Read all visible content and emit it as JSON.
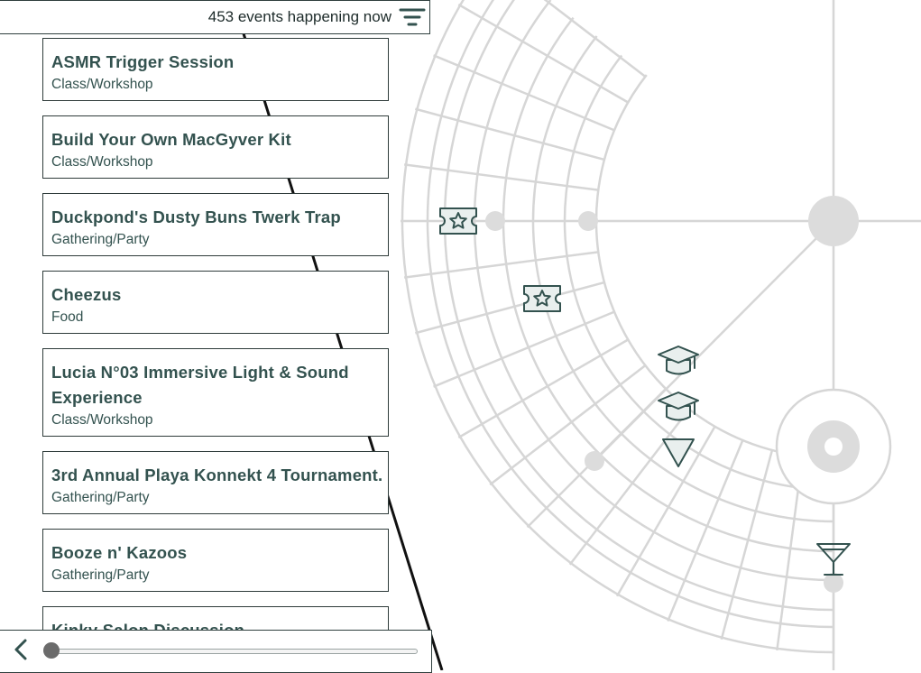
{
  "header": {
    "event_count_text": "453 events happening now",
    "filter_icon": "filter-icon"
  },
  "events": [
    {
      "title": "ASMR Trigger Session",
      "category": "Class/Workshop"
    },
    {
      "title": "Build Your Own MacGyver Kit",
      "category": "Class/Workshop"
    },
    {
      "title": "Duckpond's Dusty Buns Twerk Trap",
      "category": "Gathering/Party"
    },
    {
      "title": "Cheezus",
      "category": "Food"
    },
    {
      "title": "Lucia N°03 Immersive Light & Sound Experience",
      "category": "Class/Workshop"
    },
    {
      "title": "3rd Annual Playa Konnekt 4 Tournament.",
      "category": "Gathering/Party"
    },
    {
      "title": "Booze n' Kazoos",
      "category": "Gathering/Party"
    },
    {
      "title": "Kinky Salon Discussion",
      "category": ""
    }
  ],
  "map": {
    "street_color": "#d6d6d6",
    "pin_color": "#33524f",
    "markers": [
      {
        "icon": "ticket-star-icon"
      },
      {
        "icon": "ticket-star-icon"
      },
      {
        "icon": "graduation-cap-icon"
      },
      {
        "icon": "graduation-cap-icon"
      },
      {
        "icon": "triangle-marker-icon"
      },
      {
        "icon": "cocktail-glass-icon"
      }
    ]
  },
  "footer": {
    "back_icon": "chevron-left-icon",
    "time_slider_value": 0
  }
}
